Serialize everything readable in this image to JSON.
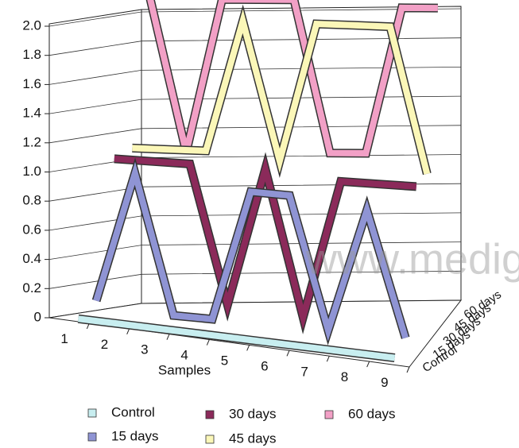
{
  "chart_data": {
    "type": "line3d",
    "x_label": "Samples",
    "categories": [
      "1",
      "2",
      "3",
      "4",
      "5",
      "6",
      "7",
      "8",
      "9"
    ],
    "ylim": [
      0,
      2.0
    ],
    "yticks": [
      0,
      0.2,
      0.4,
      0.6,
      0.8,
      {
        "value": 1.0,
        "label": "1.0"
      },
      1.2,
      1.4,
      1.6,
      1.8,
      {
        "value": 2.0,
        "label": "2.0"
      }
    ],
    "grid": true,
    "watermark": "www.medig",
    "series": [
      {
        "name": "Control",
        "color": "#c8eef0",
        "values": [
          0,
          0,
          0,
          0,
          0,
          0,
          0,
          0,
          0
        ]
      },
      {
        "name": "15 days",
        "color": "#8f94d4",
        "values": [
          0.1,
          1.0,
          0.05,
          0.05,
          0.95,
          0.95,
          0.05,
          0.9,
          0.05
        ]
      },
      {
        "name": "30 days",
        "color": "#8b2a5a",
        "values": [
          1.05,
          1.05,
          1.05,
          0.1,
          1.05,
          0.05,
          1.0,
          1.0,
          1.0
        ]
      },
      {
        "name": "45 days",
        "color": "#fbf7b8",
        "values": [
          1.1,
          1.1,
          1.1,
          2.0,
          1.05,
          2.0,
          2.0,
          2.0,
          1.0
        ]
      },
      {
        "name": "60 days",
        "color": "#f2a0c6",
        "values": [
          2.1,
          1.05,
          2.1,
          2.1,
          2.1,
          1.05,
          1.05,
          2.05,
          2.05
        ]
      }
    ]
  }
}
